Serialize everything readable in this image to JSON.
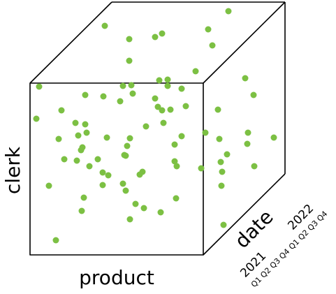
{
  "axes": {
    "vertical": "clerk",
    "horizontal": "product",
    "depth": "date"
  },
  "years": [
    "2021",
    "2022"
  ],
  "quarters": [
    "Q1",
    "Q2",
    "Q3",
    "Q4"
  ],
  "colors": {
    "stroke": "#000000",
    "point": "#7cc043",
    "background": "#ffffff"
  },
  "point_count": 84
}
